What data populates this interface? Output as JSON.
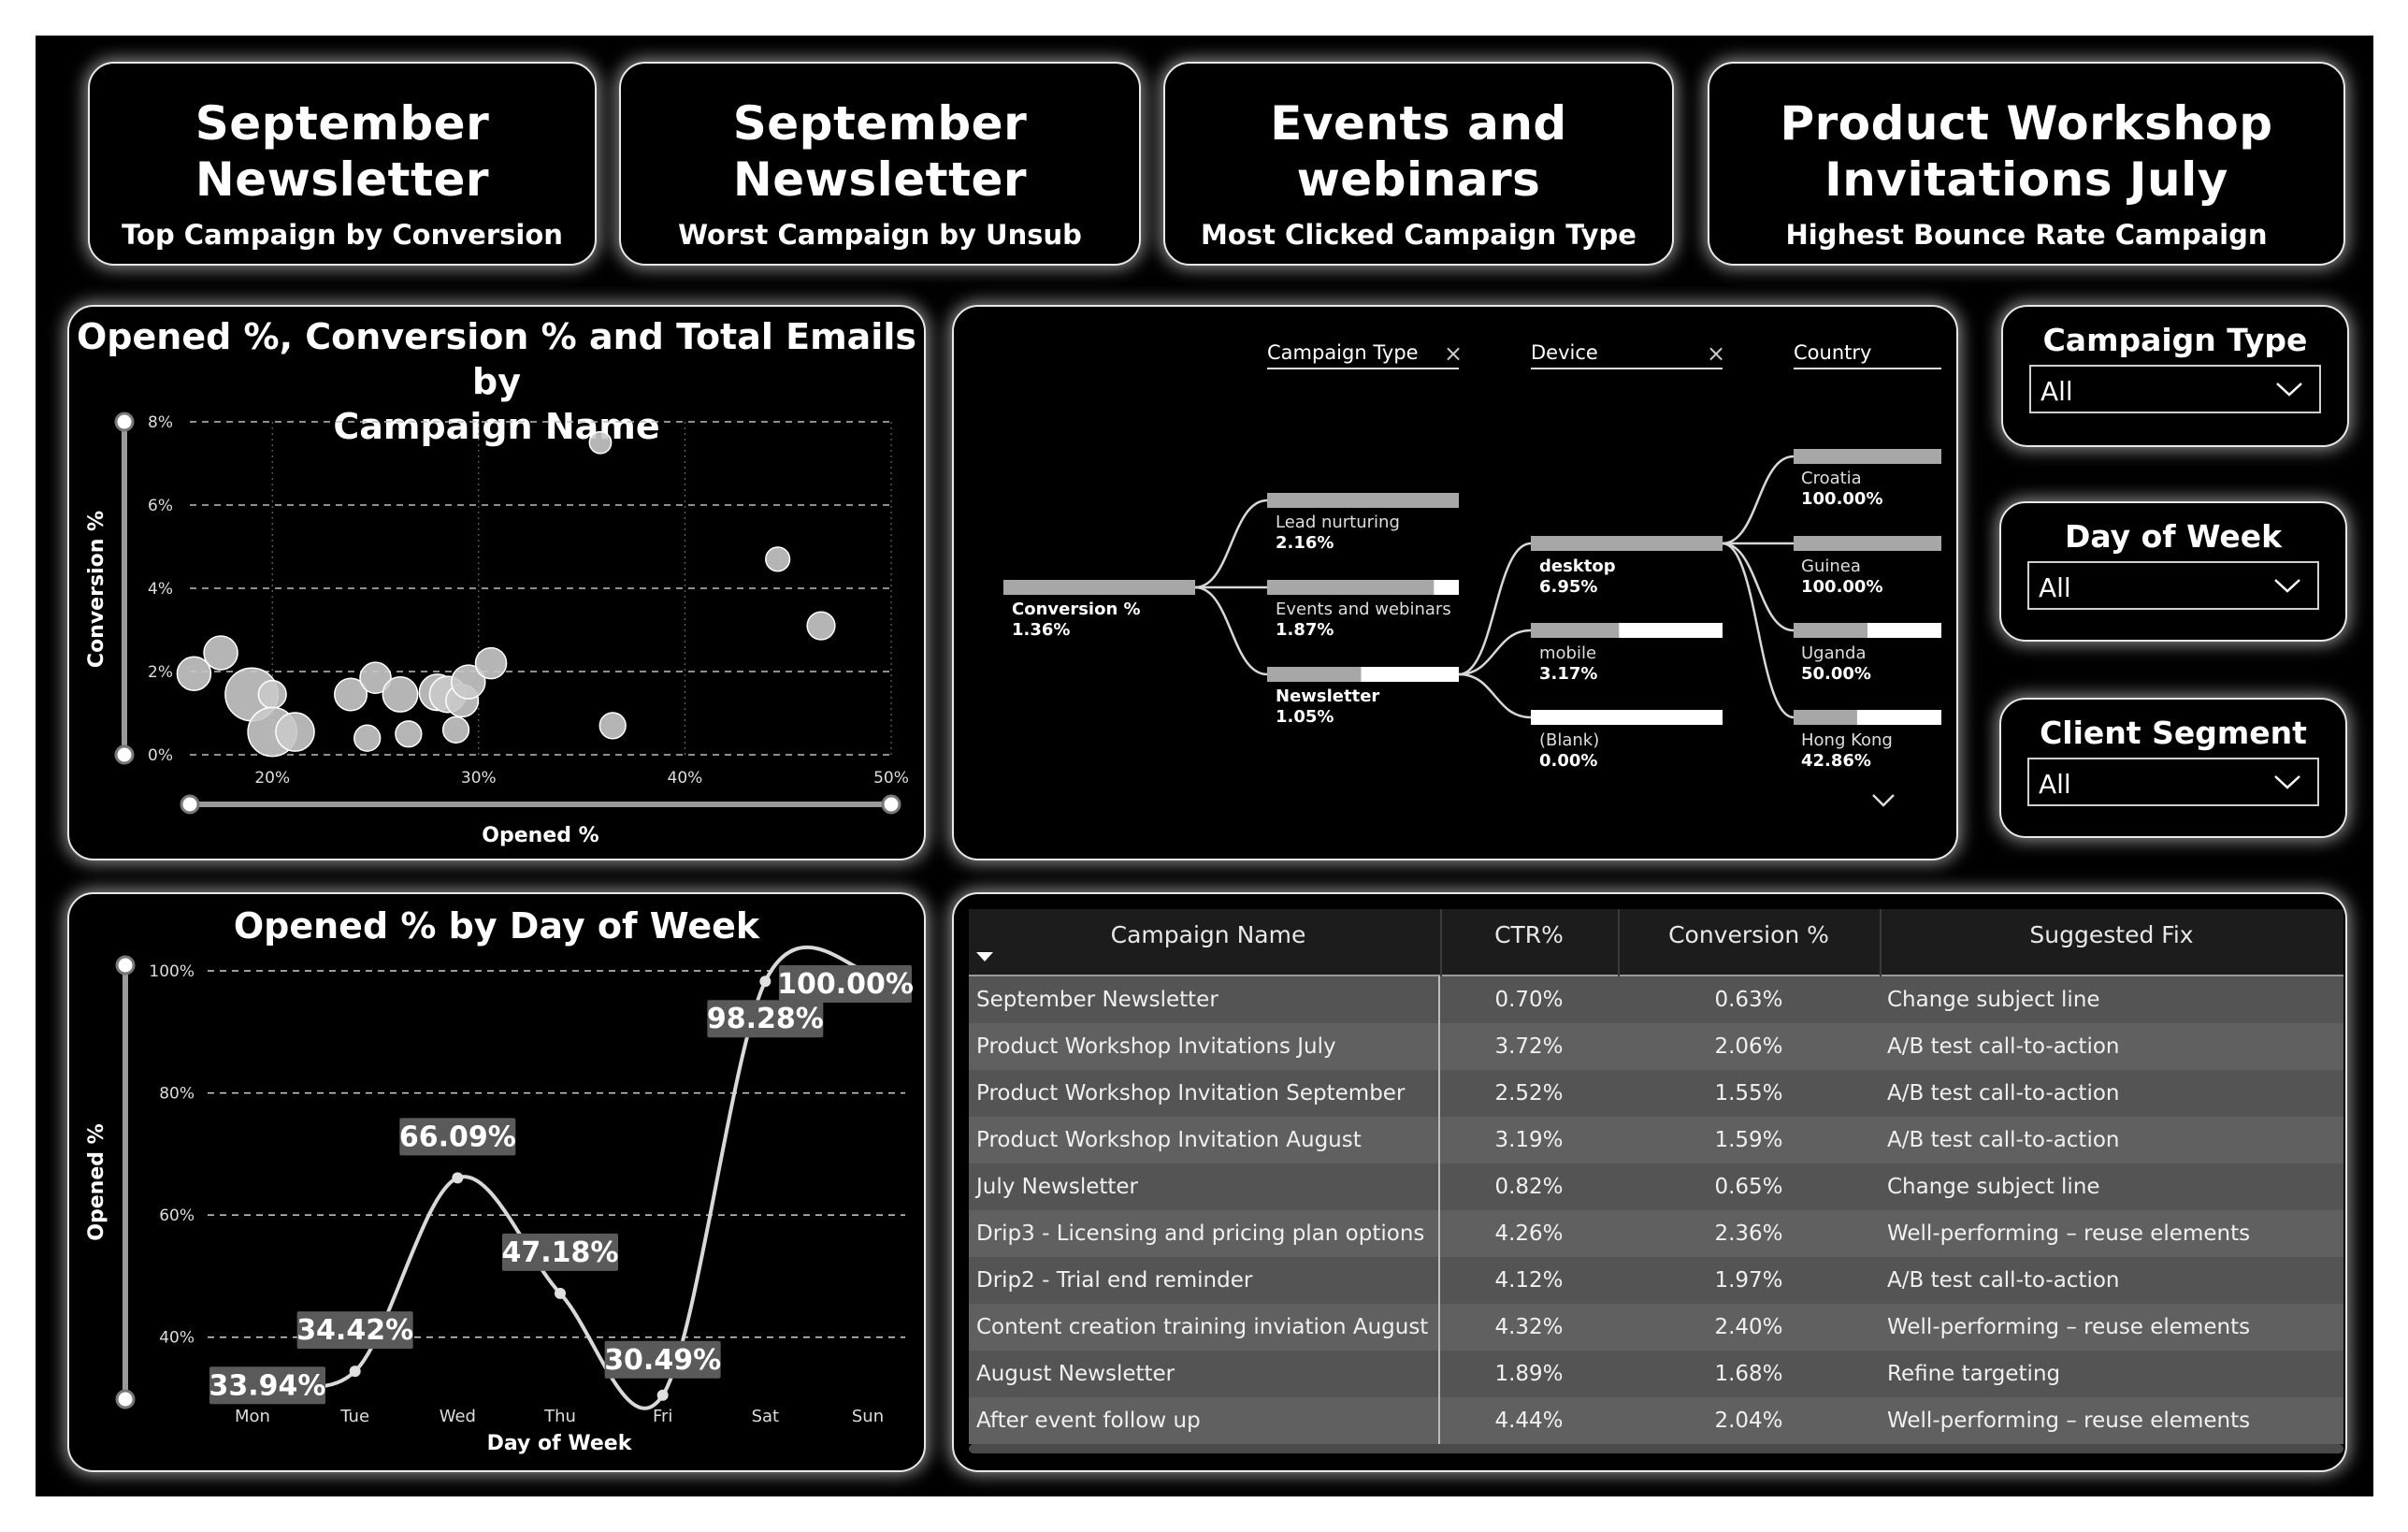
{
  "kpis": [
    {
      "value_line1": "September",
      "value_line2": "Newsletter",
      "caption": "Top Campaign by Conversion"
    },
    {
      "value_line1": "September",
      "value_line2": "Newsletter",
      "caption": "Worst Campaign by Unsub"
    },
    {
      "value_line1": "Events and",
      "value_line2": "webinars",
      "caption": "Most Clicked Campaign Type"
    },
    {
      "value_line1": "Product Workshop",
      "value_line2": "Invitations July",
      "caption": "Highest Bounce Rate Campaign"
    }
  ],
  "scatter": {
    "title_line1": "Opened %, Conversion % and Total Emails by",
    "title_line2": "Campaign Name",
    "xlabel": "Opened %",
    "ylabel": "Conversion %",
    "y_ticks": [
      "0%",
      "2%",
      "4%",
      "6%",
      "8%"
    ],
    "x_ticks": [
      "20%",
      "30%",
      "40%",
      "50%"
    ]
  },
  "decomp": {
    "levels": [
      {
        "label": "Campaign Type",
        "close_icon": "×"
      },
      {
        "label": "Device",
        "close_icon": "×"
      },
      {
        "label": "Country",
        "close_icon": ""
      }
    ],
    "root": {
      "name": "Conversion %",
      "value": "1.36%"
    },
    "campaign_types": [
      {
        "name": "Lead nurturing",
        "value": "2.16%",
        "fill": 1.0
      },
      {
        "name": "Events and webinars",
        "value": "1.87%",
        "fill": 0.87
      },
      {
        "name": "Newsletter",
        "value": "1.05%",
        "fill": 0.49
      }
    ],
    "devices": [
      {
        "name": "desktop",
        "value": "6.95%",
        "fill": 1.0
      },
      {
        "name": "mobile",
        "value": "3.17%",
        "fill": 0.46
      },
      {
        "name": "(Blank)",
        "value": "0.00%",
        "fill": 0.0
      }
    ],
    "countries": [
      {
        "name": "Croatia",
        "value": "100.00%",
        "fill": 1.0
      },
      {
        "name": "Guinea",
        "value": "100.00%",
        "fill": 1.0
      },
      {
        "name": "Uganda",
        "value": "50.00%",
        "fill": 0.5
      },
      {
        "name": "Hong Kong",
        "value": "42.86%",
        "fill": 0.43
      }
    ]
  },
  "slicers": [
    {
      "title": "Campaign Type",
      "value": "All"
    },
    {
      "title": "Day of Week",
      "value": "All"
    },
    {
      "title": "Client Segment",
      "value": "All"
    }
  ],
  "line": {
    "title": "Opened % by Day of Week",
    "xlabel": "Day of Week",
    "ylabel": "Opened %",
    "y_ticks": [
      "40%",
      "60%",
      "80%",
      "100%"
    ]
  },
  "table": {
    "headers": [
      "Campaign Name",
      "CTR%",
      "Conversion %",
      "Suggested Fix"
    ],
    "rows": [
      [
        "September Newsletter",
        "0.70%",
        "0.63%",
        "Change subject line"
      ],
      [
        "Product Workshop Invitations July",
        "3.72%",
        "2.06%",
        "A/B test call-to-action"
      ],
      [
        "Product Workshop Invitation September",
        "2.52%",
        "1.55%",
        "A/B test call-to-action"
      ],
      [
        "Product Workshop Invitation August",
        "3.19%",
        "1.59%",
        "A/B test call-to-action"
      ],
      [
        "July Newsletter",
        "0.82%",
        "0.65%",
        "Change subject line"
      ],
      [
        "Drip3 - Licensing and pricing plan options",
        "4.26%",
        "2.36%",
        "Well-performing – reuse elements"
      ],
      [
        "Drip2 - Trial end reminder",
        "4.12%",
        "1.97%",
        "A/B test call-to-action"
      ],
      [
        "Content creation training inviation August",
        "4.32%",
        "2.40%",
        "Well-performing – reuse elements"
      ],
      [
        "August Newsletter",
        "1.89%",
        "1.68%",
        "Refine targeting"
      ],
      [
        "After event follow up",
        "4.44%",
        "2.04%",
        "Well-performing – reuse elements"
      ]
    ]
  },
  "chart_data": [
    {
      "type": "scatter",
      "title": "Opened %, Conversion % and Total Emails by Campaign Name",
      "xlabel": "Opened %",
      "ylabel": "Conversion %",
      "xlim": [
        16,
        50
      ],
      "ylim": [
        0,
        8
      ],
      "grid": true,
      "points": [
        {
          "x": 16.2,
          "y": 1.95,
          "size": 1
        },
        {
          "x": 17.5,
          "y": 2.45,
          "size": 1
        },
        {
          "x": 19.0,
          "y": 1.45,
          "size": 3
        },
        {
          "x": 20.0,
          "y": 1.45,
          "size": 0.6
        },
        {
          "x": 20.0,
          "y": 0.55,
          "size": 2.5
        },
        {
          "x": 21.1,
          "y": 0.55,
          "size": 1.4
        },
        {
          "x": 23.8,
          "y": 1.45,
          "size": 0.9
        },
        {
          "x": 24.6,
          "y": 0.4,
          "size": 0.5
        },
        {
          "x": 25.0,
          "y": 1.85,
          "size": 0.8
        },
        {
          "x": 26.2,
          "y": 1.45,
          "size": 1.1
        },
        {
          "x": 26.6,
          "y": 0.5,
          "size": 0.5
        },
        {
          "x": 28.0,
          "y": 1.5,
          "size": 1.2
        },
        {
          "x": 28.5,
          "y": 1.45,
          "size": 1.2
        },
        {
          "x": 28.9,
          "y": 0.6,
          "size": 0.5
        },
        {
          "x": 29.2,
          "y": 1.3,
          "size": 0.9
        },
        {
          "x": 29.5,
          "y": 1.75,
          "size": 1
        },
        {
          "x": 30.6,
          "y": 2.2,
          "size": 0.8
        },
        {
          "x": 35.9,
          "y": 7.5,
          "size": 0.3
        },
        {
          "x": 36.5,
          "y": 0.7,
          "size": 0.5
        },
        {
          "x": 44.5,
          "y": 4.7,
          "size": 0.4
        },
        {
          "x": 46.6,
          "y": 3.1,
          "size": 0.6
        }
      ]
    },
    {
      "type": "line",
      "title": "Opened % by Day of Week",
      "xlabel": "Day of Week",
      "ylabel": "Opened %",
      "categories": [
        "Mon",
        "Tue",
        "Wed",
        "Thu",
        "Fri",
        "Sat",
        "Sun"
      ],
      "values": [
        33.94,
        34.42,
        66.09,
        47.18,
        30.49,
        98.28,
        100.0
      ],
      "labels": [
        "33.94%",
        "34.42%",
        "66.09%",
        "47.18%",
        "30.49%",
        "98.28%",
        "100.00%"
      ],
      "ylim": [
        30,
        100
      ],
      "grid": true
    }
  ]
}
